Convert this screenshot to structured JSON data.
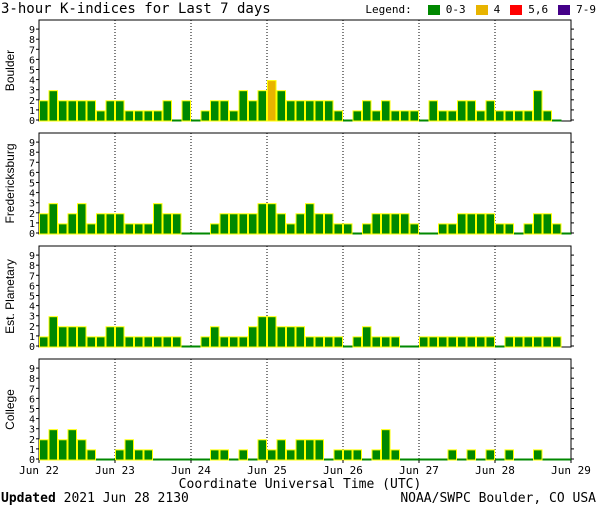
{
  "title": "3-hour K-indices for Last 7 days",
  "legend": {
    "label": "Legend:",
    "items": [
      {
        "label": "0-3",
        "color": "#008800"
      },
      {
        "label": "4",
        "color": "#e8b400"
      },
      {
        "label": "5,6",
        "color": "#ff0000"
      },
      {
        "label": "7-9",
        "color": "#440088"
      }
    ]
  },
  "x_axis_title": "Coordinate Universal Time (UTC)",
  "footer": {
    "updated_label": "Updated",
    "updated_value": "2021 Jun 28 2130",
    "source": "NOAA/SWPC Boulder, CO USA"
  },
  "chart_data": {
    "type": "bar",
    "x_tick_labels": [
      "Jun 22",
      "Jun 23",
      "Jun 24",
      "Jun 25",
      "Jun 26",
      "Jun 27",
      "Jun 28",
      "Jun 29"
    ],
    "y_ticks": [
      0,
      1,
      2,
      3,
      4,
      5,
      6,
      7,
      8,
      9
    ],
    "ylim": [
      0,
      9
    ],
    "intervals_per_day": 8,
    "series": [
      {
        "name": "Boulder",
        "values": [
          2,
          3,
          2,
          2,
          2,
          2,
          1,
          2,
          2,
          1,
          1,
          1,
          1,
          2,
          0,
          2,
          0,
          1,
          2,
          2,
          1,
          3,
          2,
          3,
          4,
          3,
          2,
          2,
          2,
          2,
          2,
          1,
          0,
          1,
          2,
          1,
          2,
          1,
          1,
          1,
          0,
          2,
          1,
          1,
          2,
          2,
          1,
          2,
          1,
          1,
          1,
          1,
          3,
          1,
          0,
          null
        ]
      },
      {
        "name": "Fredericksburg",
        "values": [
          2,
          3,
          1,
          2,
          3,
          1,
          2,
          2,
          2,
          1,
          1,
          1,
          3,
          2,
          2,
          0,
          0,
          0,
          1,
          2,
          2,
          2,
          2,
          3,
          3,
          2,
          1,
          2,
          3,
          2,
          2,
          1,
          1,
          0,
          1,
          2,
          2,
          2,
          2,
          1,
          0,
          0,
          1,
          1,
          2,
          2,
          2,
          2,
          1,
          1,
          0,
          1,
          2,
          2,
          1,
          0
        ]
      },
      {
        "name": "Est. Planetary",
        "values": [
          1,
          3,
          2,
          2,
          2,
          1,
          1,
          2,
          2,
          1,
          1,
          1,
          1,
          1,
          1,
          0,
          0,
          1,
          2,
          1,
          1,
          1,
          2,
          3,
          3,
          2,
          2,
          2,
          1,
          1,
          1,
          1,
          0,
          1,
          2,
          1,
          1,
          1,
          0,
          0,
          1,
          1,
          1,
          1,
          1,
          1,
          1,
          1,
          0,
          1,
          1,
          1,
          1,
          1,
          1,
          null
        ]
      },
      {
        "name": "College",
        "values": [
          2,
          3,
          2,
          3,
          2,
          1,
          0,
          0,
          1,
          2,
          1,
          1,
          0,
          0,
          0,
          0,
          0,
          0,
          1,
          1,
          0,
          1,
          0,
          2,
          1,
          2,
          1,
          2,
          2,
          2,
          0,
          1,
          1,
          1,
          0,
          1,
          3,
          1,
          0,
          0,
          0,
          0,
          0,
          1,
          0,
          1,
          0,
          1,
          0,
          1,
          0,
          0,
          1,
          0,
          0,
          0
        ]
      }
    ]
  }
}
